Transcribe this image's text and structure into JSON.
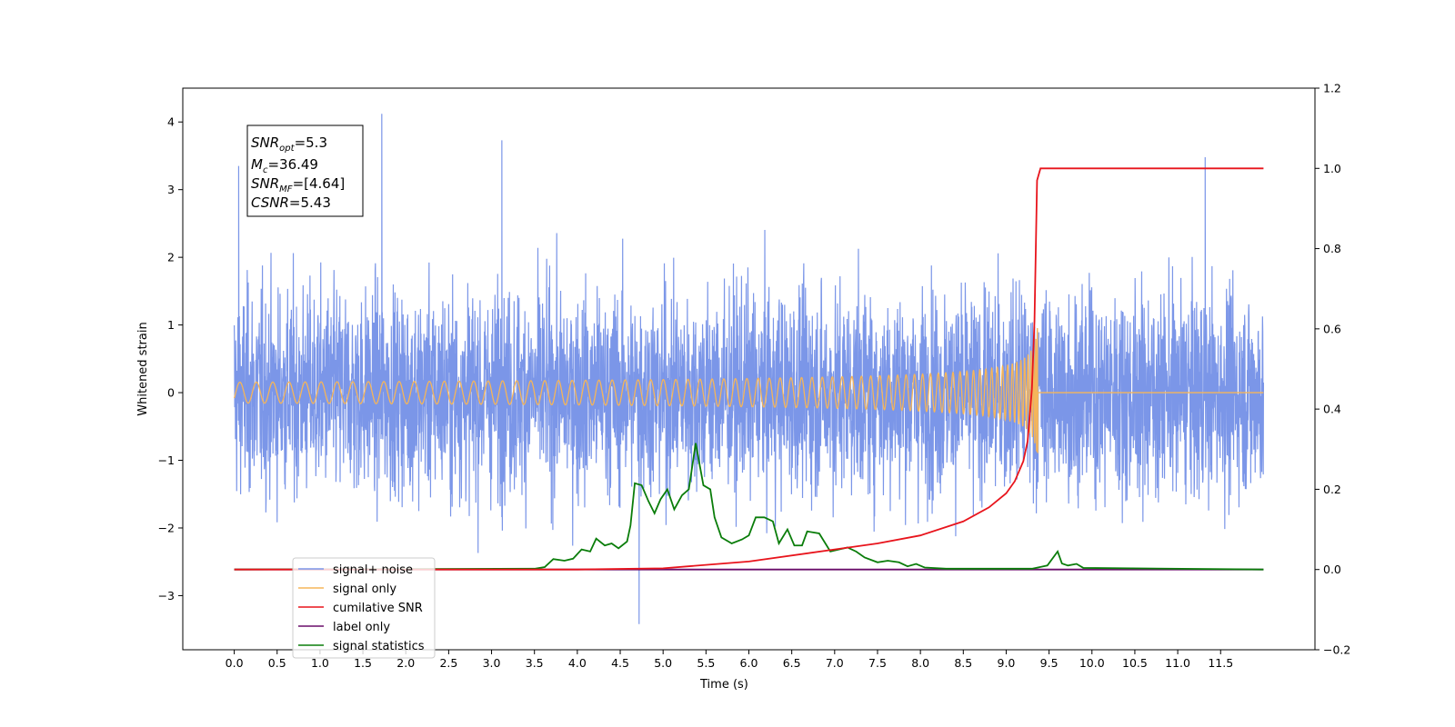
{
  "chart_data": {
    "type": "line",
    "xlabel": "Time (s)",
    "ylabel": "Whitened strain",
    "xlim": [
      -0.6,
      12.6
    ],
    "ylim": [
      -3.8,
      4.5
    ],
    "y2lim": [
      -0.2,
      1.2
    ],
    "x_ticks": [
      "0.0",
      "0.5",
      "1.0",
      "1.5",
      "2.0",
      "2.5",
      "3.0",
      "3.5",
      "4.0",
      "4.5",
      "5.0",
      "5.5",
      "6.0",
      "6.5",
      "7.0",
      "7.5",
      "8.0",
      "8.5",
      "9.0",
      "9.5",
      "10.0",
      "10.5",
      "11.0",
      "11.5"
    ],
    "y_ticks": [
      "−3",
      "−2",
      "−1",
      "0",
      "1",
      "2",
      "3",
      "4"
    ],
    "y2_ticks": [
      "−0.2",
      "0.0",
      "0.2",
      "0.4",
      "0.6",
      "0.8",
      "1.0",
      "1.2"
    ],
    "grid": false,
    "legend_position": "lower-left",
    "textbox": {
      "snr_opt_label": "SNR",
      "snr_opt_sub": "opt",
      "snr_opt_value": "=5.3",
      "mc_label": "M",
      "mc_sub": "c",
      "mc_value": "=36.49",
      "snr_mf_label": "SNR",
      "snr_mf_sub": "MF",
      "snr_mf_value": "=[4.64]",
      "csnr_label": "CSNR",
      "csnr_value": "=5.43"
    },
    "series": [
      {
        "name": "signal+ noise",
        "color": "#7b96e8",
        "axis": "left",
        "x_range": [
          0.0,
          12.0
        ],
        "approx_std": 0.75,
        "peak_values": [
          {
            "x": 0.05,
            "y": 3.35
          },
          {
            "x": 1.72,
            "y": 4.12
          },
          {
            "x": 3.12,
            "y": 3.73
          },
          {
            "x": 4.72,
            "y": -3.42
          },
          {
            "x": 11.32,
            "y": 3.48
          }
        ]
      },
      {
        "name": "signal only",
        "color": "#f5b55a",
        "axis": "left",
        "x_range": [
          0.0,
          12.0
        ],
        "merger_time": 9.37,
        "peak_amplitude": 1.2
      },
      {
        "name": "cumilative SNR",
        "color": "#e8141c",
        "axis": "right",
        "points": [
          [
            0.0,
            0.0
          ],
          [
            4.0,
            0.0
          ],
          [
            5.0,
            0.003
          ],
          [
            6.0,
            0.02
          ],
          [
            7.0,
            0.05
          ],
          [
            7.5,
            0.065
          ],
          [
            8.0,
            0.085
          ],
          [
            8.5,
            0.12
          ],
          [
            8.8,
            0.155
          ],
          [
            9.0,
            0.19
          ],
          [
            9.1,
            0.22
          ],
          [
            9.2,
            0.27
          ],
          [
            9.25,
            0.32
          ],
          [
            9.3,
            0.45
          ],
          [
            9.33,
            0.62
          ],
          [
            9.36,
            0.97
          ],
          [
            9.4,
            1.0
          ],
          [
            12.0,
            1.0
          ]
        ]
      },
      {
        "name": "label only",
        "color": "#6a0d6a",
        "axis": "right",
        "points": [
          [
            0.0,
            0.0
          ],
          [
            12.0,
            0.0
          ]
        ]
      },
      {
        "name": "signal statistics",
        "color": "#0a7d0a",
        "axis": "right",
        "points": [
          [
            0.0,
            0.0
          ],
          [
            3.5,
            0.002
          ],
          [
            3.62,
            0.006
          ],
          [
            3.72,
            0.026
          ],
          [
            3.85,
            0.022
          ],
          [
            3.95,
            0.027
          ],
          [
            4.05,
            0.05
          ],
          [
            4.15,
            0.045
          ],
          [
            4.22,
            0.077
          ],
          [
            4.32,
            0.06
          ],
          [
            4.4,
            0.065
          ],
          [
            4.48,
            0.053
          ],
          [
            4.58,
            0.07
          ],
          [
            4.62,
            0.11
          ],
          [
            4.67,
            0.215
          ],
          [
            4.75,
            0.21
          ],
          [
            4.83,
            0.17
          ],
          [
            4.9,
            0.14
          ],
          [
            4.97,
            0.175
          ],
          [
            5.05,
            0.2
          ],
          [
            5.13,
            0.15
          ],
          [
            5.22,
            0.185
          ],
          [
            5.3,
            0.2
          ],
          [
            5.38,
            0.315
          ],
          [
            5.47,
            0.21
          ],
          [
            5.55,
            0.2
          ],
          [
            5.6,
            0.13
          ],
          [
            5.68,
            0.08
          ],
          [
            5.8,
            0.065
          ],
          [
            5.92,
            0.075
          ],
          [
            6.0,
            0.085
          ],
          [
            6.08,
            0.13
          ],
          [
            6.18,
            0.13
          ],
          [
            6.28,
            0.12
          ],
          [
            6.35,
            0.065
          ],
          [
            6.45,
            0.1
          ],
          [
            6.53,
            0.06
          ],
          [
            6.62,
            0.06
          ],
          [
            6.68,
            0.095
          ],
          [
            6.82,
            0.09
          ],
          [
            6.95,
            0.045
          ],
          [
            7.05,
            0.05
          ],
          [
            7.15,
            0.055
          ],
          [
            7.25,
            0.045
          ],
          [
            7.35,
            0.03
          ],
          [
            7.5,
            0.018
          ],
          [
            7.62,
            0.022
          ],
          [
            7.75,
            0.018
          ],
          [
            7.85,
            0.008
          ],
          [
            7.95,
            0.014
          ],
          [
            8.05,
            0.005
          ],
          [
            8.3,
            0.002
          ],
          [
            9.3,
            0.002
          ],
          [
            9.48,
            0.01
          ],
          [
            9.6,
            0.045
          ],
          [
            9.65,
            0.015
          ],
          [
            9.72,
            0.01
          ],
          [
            9.82,
            0.014
          ],
          [
            9.9,
            0.004
          ],
          [
            12.0,
            0.0
          ]
        ]
      }
    ]
  }
}
